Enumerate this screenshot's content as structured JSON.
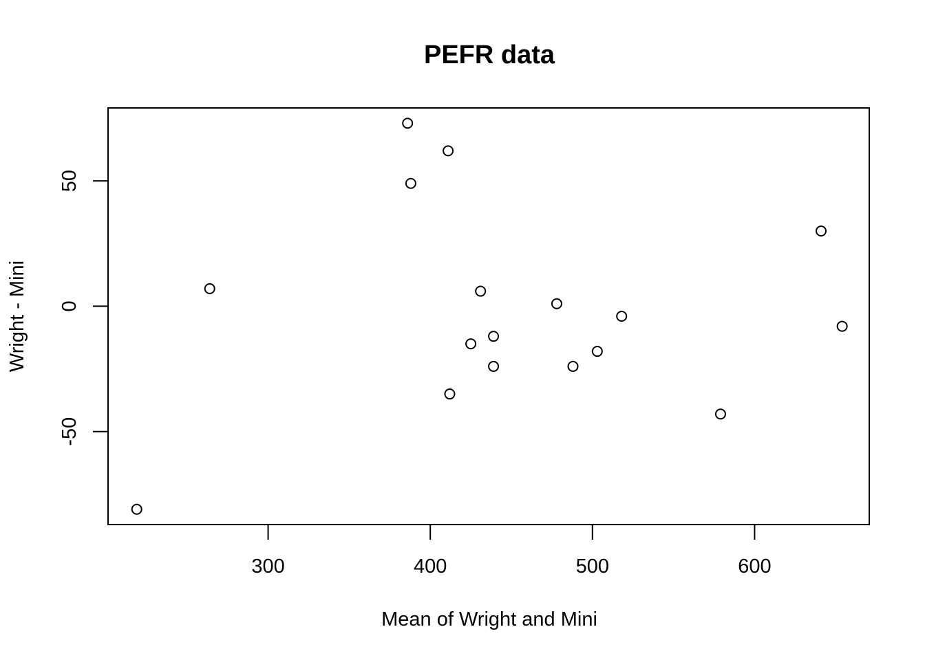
{
  "chart_data": {
    "type": "scatter",
    "title": "PEFR data",
    "xlabel": "Mean of Wright and Mini",
    "ylabel": "Wright - Mini",
    "xlim": [
      201.3,
      670.7
    ],
    "ylim": [
      -87.1,
      79.1
    ],
    "x_ticks": [
      300,
      400,
      500,
      600
    ],
    "x_tick_labels": [
      "300",
      "400",
      "500",
      "600"
    ],
    "y_ticks": [
      -50,
      0,
      50
    ],
    "y_tick_labels": [
      "-50",
      "0",
      "50"
    ],
    "grid": false,
    "legend": "none",
    "marker": "open-circle",
    "points": [
      {
        "x": 219,
        "y": -81
      },
      {
        "x": 264,
        "y": 7
      },
      {
        "x": 386,
        "y": 73
      },
      {
        "x": 388,
        "y": 49
      },
      {
        "x": 411,
        "y": 62
      },
      {
        "x": 412,
        "y": -35
      },
      {
        "x": 425,
        "y": -15
      },
      {
        "x": 431,
        "y": 6
      },
      {
        "x": 439,
        "y": -12
      },
      {
        "x": 439,
        "y": -24
      },
      {
        "x": 478,
        "y": 1
      },
      {
        "x": 488,
        "y": -24
      },
      {
        "x": 503,
        "y": -18
      },
      {
        "x": 518,
        "y": -4
      },
      {
        "x": 579,
        "y": -43
      },
      {
        "x": 641,
        "y": 30
      },
      {
        "x": 654,
        "y": -8
      }
    ]
  }
}
